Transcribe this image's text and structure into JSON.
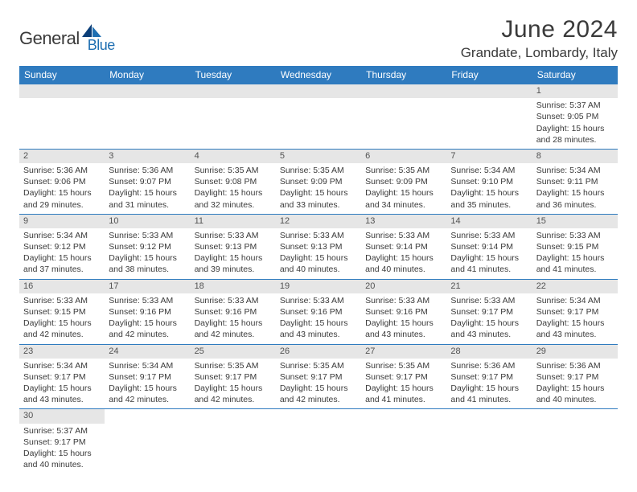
{
  "logo": {
    "word1": "General",
    "word2": "Blue"
  },
  "title": "June 2024",
  "location": "Grandate, Lombardy, Italy",
  "colors": {
    "header_bg": "#2f7bbf",
    "header_text": "#ffffff",
    "daynum_bg": "#e6e6e6",
    "border": "#2f7bbf",
    "logo_blue": "#1f6fb2",
    "text": "#3a3a3a"
  },
  "day_names": [
    "Sunday",
    "Monday",
    "Tuesday",
    "Wednesday",
    "Thursday",
    "Friday",
    "Saturday"
  ],
  "first_weekday": 6,
  "days": [
    {
      "n": 1,
      "sr": "5:37 AM",
      "ss": "9:05 PM",
      "dh": 15,
      "dm": 28
    },
    {
      "n": 2,
      "sr": "5:36 AM",
      "ss": "9:06 PM",
      "dh": 15,
      "dm": 29
    },
    {
      "n": 3,
      "sr": "5:36 AM",
      "ss": "9:07 PM",
      "dh": 15,
      "dm": 31
    },
    {
      "n": 4,
      "sr": "5:35 AM",
      "ss": "9:08 PM",
      "dh": 15,
      "dm": 32
    },
    {
      "n": 5,
      "sr": "5:35 AM",
      "ss": "9:09 PM",
      "dh": 15,
      "dm": 33
    },
    {
      "n": 6,
      "sr": "5:35 AM",
      "ss": "9:09 PM",
      "dh": 15,
      "dm": 34
    },
    {
      "n": 7,
      "sr": "5:34 AM",
      "ss": "9:10 PM",
      "dh": 15,
      "dm": 35
    },
    {
      "n": 8,
      "sr": "5:34 AM",
      "ss": "9:11 PM",
      "dh": 15,
      "dm": 36
    },
    {
      "n": 9,
      "sr": "5:34 AM",
      "ss": "9:12 PM",
      "dh": 15,
      "dm": 37
    },
    {
      "n": 10,
      "sr": "5:33 AM",
      "ss": "9:12 PM",
      "dh": 15,
      "dm": 38
    },
    {
      "n": 11,
      "sr": "5:33 AM",
      "ss": "9:13 PM",
      "dh": 15,
      "dm": 39
    },
    {
      "n": 12,
      "sr": "5:33 AM",
      "ss": "9:13 PM",
      "dh": 15,
      "dm": 40
    },
    {
      "n": 13,
      "sr": "5:33 AM",
      "ss": "9:14 PM",
      "dh": 15,
      "dm": 40
    },
    {
      "n": 14,
      "sr": "5:33 AM",
      "ss": "9:14 PM",
      "dh": 15,
      "dm": 41
    },
    {
      "n": 15,
      "sr": "5:33 AM",
      "ss": "9:15 PM",
      "dh": 15,
      "dm": 41
    },
    {
      "n": 16,
      "sr": "5:33 AM",
      "ss": "9:15 PM",
      "dh": 15,
      "dm": 42
    },
    {
      "n": 17,
      "sr": "5:33 AM",
      "ss": "9:16 PM",
      "dh": 15,
      "dm": 42
    },
    {
      "n": 18,
      "sr": "5:33 AM",
      "ss": "9:16 PM",
      "dh": 15,
      "dm": 42
    },
    {
      "n": 19,
      "sr": "5:33 AM",
      "ss": "9:16 PM",
      "dh": 15,
      "dm": 43
    },
    {
      "n": 20,
      "sr": "5:33 AM",
      "ss": "9:16 PM",
      "dh": 15,
      "dm": 43
    },
    {
      "n": 21,
      "sr": "5:33 AM",
      "ss": "9:17 PM",
      "dh": 15,
      "dm": 43
    },
    {
      "n": 22,
      "sr": "5:34 AM",
      "ss": "9:17 PM",
      "dh": 15,
      "dm": 43
    },
    {
      "n": 23,
      "sr": "5:34 AM",
      "ss": "9:17 PM",
      "dh": 15,
      "dm": 43
    },
    {
      "n": 24,
      "sr": "5:34 AM",
      "ss": "9:17 PM",
      "dh": 15,
      "dm": 42
    },
    {
      "n": 25,
      "sr": "5:35 AM",
      "ss": "9:17 PM",
      "dh": 15,
      "dm": 42
    },
    {
      "n": 26,
      "sr": "5:35 AM",
      "ss": "9:17 PM",
      "dh": 15,
      "dm": 42
    },
    {
      "n": 27,
      "sr": "5:35 AM",
      "ss": "9:17 PM",
      "dh": 15,
      "dm": 41
    },
    {
      "n": 28,
      "sr": "5:36 AM",
      "ss": "9:17 PM",
      "dh": 15,
      "dm": 41
    },
    {
      "n": 29,
      "sr": "5:36 AM",
      "ss": "9:17 PM",
      "dh": 15,
      "dm": 40
    },
    {
      "n": 30,
      "sr": "5:37 AM",
      "ss": "9:17 PM",
      "dh": 15,
      "dm": 40
    }
  ],
  "labels": {
    "sunrise": "Sunrise:",
    "sunset": "Sunset:",
    "daylight_prefix": "Daylight:",
    "hours": "hours",
    "and": "and",
    "minutes": "minutes."
  }
}
